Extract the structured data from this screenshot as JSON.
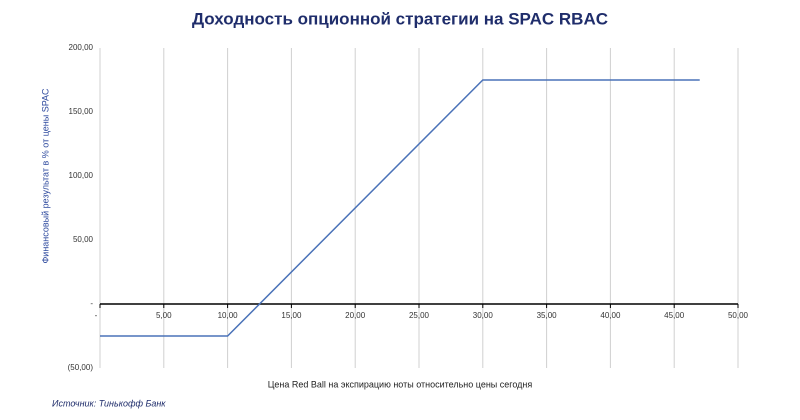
{
  "chart_data": {
    "type": "line",
    "title": "Доходность опционной стратегии на SPAC RBAC",
    "y_label": "Финансовый результат в % от цены SPAC",
    "x_label": "Цена Red Ball на экспирацию ноты относительно цены сегодня",
    "source": "Источник: Тинькофф Банк",
    "x": [
      0,
      10,
      30,
      47
    ],
    "series": [
      {
        "name": "Финансовый результат",
        "color": "#4a72b8",
        "values": [
          -25,
          -25,
          175,
          175
        ]
      }
    ],
    "xlim": [
      0,
      50
    ],
    "xticks": [
      {
        "value": 0,
        "label": "-"
      },
      {
        "value": 5,
        "label": "5,00"
      },
      {
        "value": 10,
        "label": "10,00"
      },
      {
        "value": 15,
        "label": "15,00"
      },
      {
        "value": 20,
        "label": "20,00"
      },
      {
        "value": 25,
        "label": "25,00"
      },
      {
        "value": 30,
        "label": "30,00"
      },
      {
        "value": 35,
        "label": "35,00"
      },
      {
        "value": 40,
        "label": "40,00"
      },
      {
        "value": 45,
        "label": "45,00"
      },
      {
        "value": 50,
        "label": "50,00"
      }
    ],
    "ylim": [
      -50,
      200
    ],
    "yticks": [
      {
        "value": -50,
        "label": "(50,00)"
      },
      {
        "value": 0,
        "label": "-"
      },
      {
        "value": 50,
        "label": "50,00"
      },
      {
        "value": 100,
        "label": "100,00"
      },
      {
        "value": 150,
        "label": "150,00"
      },
      {
        "value": 200,
        "label": "200,00"
      }
    ],
    "grid": true
  }
}
